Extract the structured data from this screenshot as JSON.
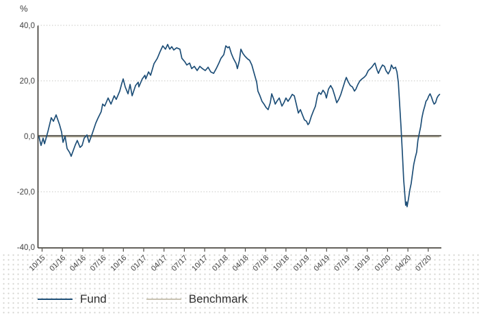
{
  "chart_data": {
    "type": "line",
    "unit": "%",
    "ylim": [
      -40,
      40
    ],
    "yticks": [
      40,
      20,
      0,
      -20,
      -40
    ],
    "ytick_labels": [
      "40,0",
      "20,0",
      "0,0",
      "-20,0",
      "-40,0"
    ],
    "xtick_labels": [
      "10/15",
      "01/16",
      "04/16",
      "07/16",
      "10/16",
      "01/17",
      "04/17",
      "07/17",
      "10/17",
      "01/18",
      "04/18",
      "07/18",
      "10/18",
      "01/19",
      "04/19",
      "07/19",
      "10/19",
      "01/20",
      "04/20",
      "07/20"
    ],
    "x_unit": "quarters from first tick (10/15); 1 unit = 3 months",
    "grid": "dotted horizontal lines at 40, 20, -20; solid dark line at 0; solid axis at -40",
    "legend_position": "bottom-left",
    "series": [
      {
        "name": "Fund",
        "color": "#1d4e77",
        "points": [
          [
            -0.15,
            -0.2
          ],
          [
            -0.05,
            -3.3
          ],
          [
            0.05,
            -0.7
          ],
          [
            0.12,
            -2.7
          ],
          [
            0.29,
            1.8
          ],
          [
            0.45,
            6.7
          ],
          [
            0.56,
            5.4
          ],
          [
            0.69,
            7.7
          ],
          [
            0.86,
            4.2
          ],
          [
            0.96,
            1.5
          ],
          [
            1.03,
            -2.2
          ],
          [
            1.13,
            0.0
          ],
          [
            1.23,
            -4.4
          ],
          [
            1.36,
            -5.9
          ],
          [
            1.43,
            -7.2
          ],
          [
            1.63,
            -3.2
          ],
          [
            1.73,
            -1.5
          ],
          [
            1.87,
            -4.0
          ],
          [
            1.97,
            -3.3
          ],
          [
            2.07,
            -0.7
          ],
          [
            2.21,
            0.5
          ],
          [
            2.31,
            -2.2
          ],
          [
            2.47,
            1.0
          ],
          [
            2.64,
            4.7
          ],
          [
            2.74,
            6.4
          ],
          [
            2.91,
            8.9
          ],
          [
            2.98,
            11.6
          ],
          [
            3.08,
            10.9
          ],
          [
            3.25,
            13.8
          ],
          [
            3.39,
            11.6
          ],
          [
            3.55,
            14.6
          ],
          [
            3.65,
            13.3
          ],
          [
            3.82,
            16.3
          ],
          [
            3.92,
            19.0
          ],
          [
            3.99,
            20.7
          ],
          [
            4.09,
            17.8
          ],
          [
            4.23,
            15.3
          ],
          [
            4.33,
            18.7
          ],
          [
            4.43,
            14.6
          ],
          [
            4.6,
            18.3
          ],
          [
            4.73,
            19.5
          ],
          [
            4.76,
            17.8
          ],
          [
            4.93,
            20.7
          ],
          [
            5.06,
            22.0
          ],
          [
            5.1,
            20.7
          ],
          [
            5.24,
            23.2
          ],
          [
            5.34,
            22.0
          ],
          [
            5.51,
            26.2
          ],
          [
            5.67,
            28.1
          ],
          [
            5.81,
            30.6
          ],
          [
            5.94,
            32.6
          ],
          [
            6.07,
            31.4
          ],
          [
            6.18,
            33.1
          ],
          [
            6.28,
            31.4
          ],
          [
            6.38,
            32.3
          ],
          [
            6.48,
            31.1
          ],
          [
            6.62,
            31.9
          ],
          [
            6.78,
            31.4
          ],
          [
            6.88,
            28.1
          ],
          [
            7.02,
            26.9
          ],
          [
            7.12,
            25.7
          ],
          [
            7.26,
            26.4
          ],
          [
            7.36,
            24.4
          ],
          [
            7.49,
            25.2
          ],
          [
            7.63,
            23.7
          ],
          [
            7.76,
            25.2
          ],
          [
            7.89,
            24.4
          ],
          [
            8.03,
            23.7
          ],
          [
            8.17,
            24.9
          ],
          [
            8.3,
            23.2
          ],
          [
            8.44,
            22.7
          ],
          [
            8.57,
            24.4
          ],
          [
            8.7,
            26.4
          ],
          [
            8.8,
            28.1
          ],
          [
            8.94,
            29.4
          ],
          [
            9.04,
            32.6
          ],
          [
            9.14,
            31.9
          ],
          [
            9.21,
            32.3
          ],
          [
            9.31,
            29.9
          ],
          [
            9.41,
            28.1
          ],
          [
            9.55,
            26.2
          ],
          [
            9.61,
            24.4
          ],
          [
            9.71,
            27.4
          ],
          [
            9.78,
            31.4
          ],
          [
            9.88,
            29.9
          ],
          [
            9.98,
            28.9
          ],
          [
            10.11,
            27.9
          ],
          [
            10.21,
            27.4
          ],
          [
            10.32,
            25.7
          ],
          [
            10.46,
            22.0
          ],
          [
            10.56,
            19.5
          ],
          [
            10.62,
            16.3
          ],
          [
            10.72,
            14.6
          ],
          [
            10.82,
            12.6
          ],
          [
            10.92,
            11.6
          ],
          [
            11.02,
            10.4
          ],
          [
            11.12,
            9.6
          ],
          [
            11.23,
            12.1
          ],
          [
            11.3,
            15.3
          ],
          [
            11.4,
            13.3
          ],
          [
            11.47,
            11.6
          ],
          [
            11.57,
            12.8
          ],
          [
            11.67,
            13.8
          ],
          [
            11.8,
            10.9
          ],
          [
            11.9,
            12.1
          ],
          [
            12.0,
            13.8
          ],
          [
            12.1,
            12.6
          ],
          [
            12.21,
            13.8
          ],
          [
            12.31,
            15.1
          ],
          [
            12.41,
            14.6
          ],
          [
            12.51,
            11.6
          ],
          [
            12.61,
            8.4
          ],
          [
            12.71,
            9.6
          ],
          [
            12.81,
            7.7
          ],
          [
            12.91,
            5.9
          ],
          [
            13.01,
            5.4
          ],
          [
            13.08,
            4.2
          ],
          [
            13.14,
            4.7
          ],
          [
            13.25,
            7.2
          ],
          [
            13.35,
            9.1
          ],
          [
            13.45,
            10.9
          ],
          [
            13.55,
            14.6
          ],
          [
            13.62,
            15.8
          ],
          [
            13.72,
            15.1
          ],
          [
            13.82,
            16.6
          ],
          [
            13.92,
            15.6
          ],
          [
            13.99,
            13.8
          ],
          [
            14.09,
            17.0
          ],
          [
            14.2,
            18.3
          ],
          [
            14.3,
            17.0
          ],
          [
            14.4,
            14.6
          ],
          [
            14.5,
            12.1
          ],
          [
            14.6,
            13.3
          ],
          [
            14.7,
            15.1
          ],
          [
            14.8,
            17.5
          ],
          [
            14.91,
            20.0
          ],
          [
            14.97,
            21.2
          ],
          [
            15.07,
            19.5
          ],
          [
            15.17,
            18.3
          ],
          [
            15.27,
            17.8
          ],
          [
            15.37,
            16.3
          ],
          [
            15.44,
            17.0
          ],
          [
            15.54,
            18.7
          ],
          [
            15.64,
            20.0
          ],
          [
            15.74,
            20.7
          ],
          [
            15.84,
            21.2
          ],
          [
            15.94,
            22.0
          ],
          [
            16.05,
            23.7
          ],
          [
            16.15,
            24.4
          ],
          [
            16.22,
            24.9
          ],
          [
            16.32,
            25.9
          ],
          [
            16.38,
            26.4
          ],
          [
            16.48,
            23.9
          ],
          [
            16.55,
            22.7
          ],
          [
            16.65,
            24.4
          ],
          [
            16.75,
            25.7
          ],
          [
            16.85,
            25.2
          ],
          [
            16.92,
            23.7
          ],
          [
            17.03,
            22.5
          ],
          [
            17.13,
            23.9
          ],
          [
            17.19,
            25.7
          ],
          [
            17.29,
            24.4
          ],
          [
            17.39,
            24.9
          ],
          [
            17.46,
            23.2
          ],
          [
            17.53,
            19.5
          ],
          [
            17.59,
            12.1
          ],
          [
            17.66,
            3.5
          ],
          [
            17.73,
            -6.4
          ],
          [
            17.79,
            -15.6
          ],
          [
            17.86,
            -22.0
          ],
          [
            17.89,
            -24.9
          ],
          [
            17.93,
            -23.7
          ],
          [
            17.96,
            -25.4
          ],
          [
            18.03,
            -22.5
          ],
          [
            18.09,
            -19.5
          ],
          [
            18.16,
            -17.0
          ],
          [
            18.23,
            -13.3
          ],
          [
            18.29,
            -10.1
          ],
          [
            18.36,
            -7.7
          ],
          [
            18.43,
            -5.7
          ],
          [
            18.49,
            -1.5
          ],
          [
            18.56,
            1.0
          ],
          [
            18.63,
            3.5
          ],
          [
            18.69,
            6.7
          ],
          [
            18.76,
            9.1
          ],
          [
            18.83,
            10.9
          ],
          [
            18.89,
            12.6
          ],
          [
            18.96,
            13.3
          ],
          [
            19.03,
            14.6
          ],
          [
            19.09,
            15.3
          ],
          [
            19.16,
            14.1
          ],
          [
            19.23,
            12.6
          ],
          [
            19.29,
            11.6
          ],
          [
            19.36,
            12.1
          ],
          [
            19.43,
            13.8
          ],
          [
            19.49,
            14.6
          ],
          [
            19.56,
            15.1
          ]
        ]
      },
      {
        "name": "Benchmark",
        "color": "#c9c3b2",
        "points": [
          [
            -0.15,
            0.0
          ],
          [
            19.56,
            0.0
          ]
        ]
      }
    ]
  },
  "colors": {
    "axis": "#4c4943",
    "zero_line": "#39362c",
    "gridline": "#c6c6c2",
    "tick_text": "#3f3f3f",
    "legend_text": "#2f2f2f",
    "background_dots": "#d2d2cd",
    "background": "#ffffff"
  }
}
